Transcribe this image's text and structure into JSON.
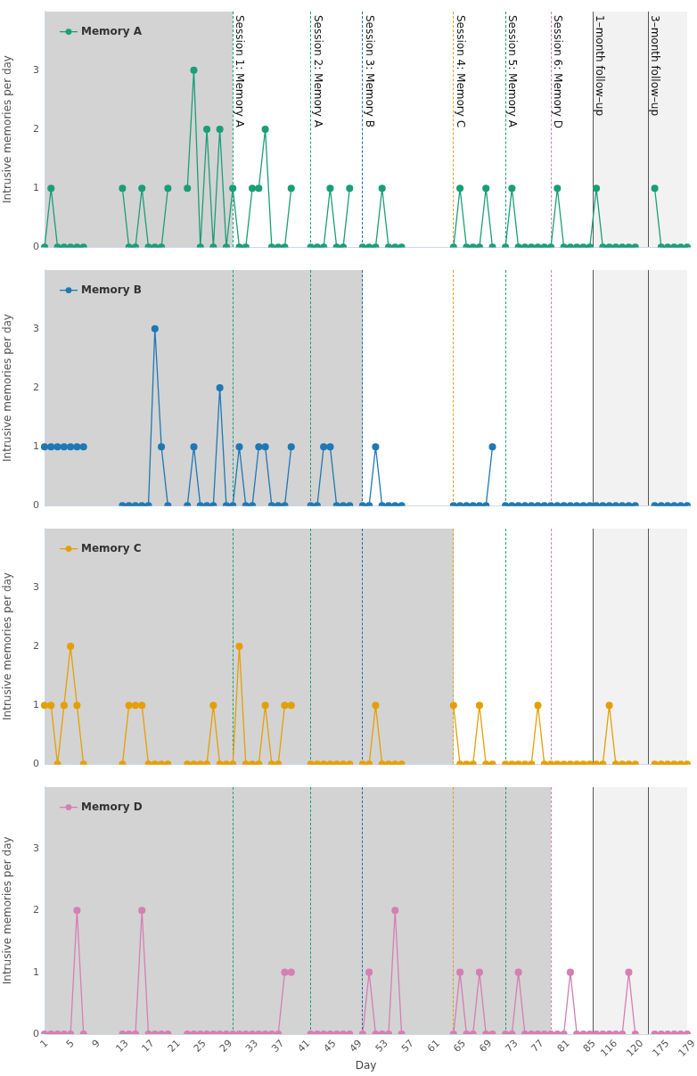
{
  "chart_data": [
    {
      "type": "line",
      "ylabel": "Intrusive memories per day",
      "legend": "top left",
      "marker": "circle",
      "line_style": "solid",
      "tick_labels": "y",
      "ylim": [
        0,
        4
      ],
      "yticks": [
        0,
        1,
        2,
        3
      ],
      "annotations": [
        "Session 1: Memory A",
        "Session 2: Memory A",
        "Session 3: Memory B",
        "Session 4: Memory C",
        "Session 5: Memory A",
        "Session 6: Memory D",
        "1–month follow–up",
        "3–month follow–up"
      ],
      "categories": [
        "1",
        null,
        null,
        null,
        "5",
        null,
        null,
        null,
        "9",
        null,
        null,
        null,
        "13",
        null,
        null,
        null,
        "17",
        null,
        null,
        null,
        "21",
        null,
        null,
        null,
        "25",
        null,
        null,
        null,
        "29",
        null,
        null,
        null,
        "33",
        null,
        null,
        null,
        "37",
        null,
        null,
        null,
        "41",
        null,
        null,
        null,
        "45",
        null,
        null,
        null,
        "49",
        null,
        null,
        null,
        "53",
        null,
        null,
        null,
        "57",
        null,
        null,
        null,
        "61",
        null,
        null,
        null,
        "65",
        null,
        null,
        null,
        "69",
        null,
        null,
        null,
        "73",
        null,
        null,
        null,
        "77",
        null,
        null,
        null,
        "81",
        null,
        null,
        null,
        "85",
        null,
        null,
        "116",
        null,
        null,
        null,
        "120",
        null,
        null,
        null,
        "175",
        null,
        null,
        null,
        "179"
      ],
      "series": [
        {
          "name": "Memory A",
          "color": "#1b9e77",
          "values": [
            0,
            1,
            0,
            0,
            0,
            0,
            0,
            null,
            null,
            null,
            null,
            null,
            1,
            0,
            0,
            1,
            0,
            0,
            0,
            1,
            null,
            null,
            1,
            3,
            0,
            2,
            0,
            2,
            0,
            1,
            0,
            0,
            1,
            1,
            2,
            0,
            0,
            0,
            1,
            null,
            null,
            0,
            0,
            0,
            1,
            0,
            0,
            1,
            null,
            0,
            0,
            0,
            1,
            0,
            0,
            0,
            null,
            null,
            null,
            null,
            null,
            null,
            null,
            0,
            1,
            0,
            0,
            0,
            1,
            0,
            null,
            0,
            1,
            0,
            0,
            0,
            0,
            0,
            0,
            1,
            0,
            0,
            0,
            0,
            0,
            1,
            0,
            0,
            0,
            0,
            0,
            0,
            null,
            null,
            1,
            0,
            0,
            0,
            0,
            0
          ]
        }
      ]
    },
    {
      "type": "line",
      "ylabel": "Intrusive memories per day",
      "legend": "top left",
      "marker": "circle",
      "line_style": "solid",
      "tick_labels": "y",
      "ylim": [
        0,
        4
      ],
      "yticks": [
        0,
        1,
        2,
        3
      ],
      "categories": [
        "1",
        null,
        null,
        null,
        "5",
        null,
        null,
        null,
        "9",
        null,
        null,
        null,
        "13",
        null,
        null,
        null,
        "17",
        null,
        null,
        null,
        "21",
        null,
        null,
        null,
        "25",
        null,
        null,
        null,
        "29",
        null,
        null,
        null,
        "33",
        null,
        null,
        null,
        "37",
        null,
        null,
        null,
        "41",
        null,
        null,
        null,
        "45",
        null,
        null,
        null,
        "49",
        null,
        null,
        null,
        "53",
        null,
        null,
        null,
        "57",
        null,
        null,
        null,
        "61",
        null,
        null,
        null,
        "65",
        null,
        null,
        null,
        "69",
        null,
        null,
        null,
        "73",
        null,
        null,
        null,
        "77",
        null,
        null,
        null,
        "81",
        null,
        null,
        null,
        "85",
        null,
        null,
        "116",
        null,
        null,
        null,
        "120",
        null,
        null,
        null,
        "175",
        null,
        null,
        null,
        "179"
      ],
      "series": [
        {
          "name": "Memory B",
          "color": "#1f78b4",
          "values": [
            1,
            1,
            1,
            1,
            1,
            1,
            1,
            null,
            null,
            null,
            null,
            null,
            0,
            0,
            0,
            0,
            0,
            3,
            1,
            0,
            null,
            null,
            0,
            1,
            0,
            0,
            0,
            2,
            0,
            0,
            1,
            0,
            0,
            1,
            1,
            0,
            0,
            0,
            1,
            null,
            null,
            0,
            0,
            1,
            1,
            0,
            0,
            0,
            null,
            0,
            0,
            1,
            0,
            0,
            0,
            0,
            null,
            null,
            null,
            null,
            null,
            null,
            null,
            0,
            0,
            0,
            0,
            0,
            0,
            1,
            null,
            0,
            0,
            0,
            0,
            0,
            0,
            0,
            0,
            0,
            0,
            0,
            0,
            0,
            0,
            0,
            0,
            0,
            0,
            0,
            0,
            0,
            null,
            null,
            0,
            0,
            0,
            0,
            0,
            0
          ]
        }
      ]
    },
    {
      "type": "line",
      "ylabel": "Intrusive memories per day",
      "legend": "top left",
      "marker": "circle",
      "line_style": "solid",
      "tick_labels": "y",
      "ylim": [
        0,
        4
      ],
      "yticks": [
        0,
        1,
        2,
        3
      ],
      "categories": [
        "1",
        null,
        null,
        null,
        "5",
        null,
        null,
        null,
        "9",
        null,
        null,
        null,
        "13",
        null,
        null,
        null,
        "17",
        null,
        null,
        null,
        "21",
        null,
        null,
        null,
        "25",
        null,
        null,
        null,
        "29",
        null,
        null,
        null,
        "33",
        null,
        null,
        null,
        "37",
        null,
        null,
        null,
        "41",
        null,
        null,
        null,
        "45",
        null,
        null,
        null,
        "49",
        null,
        null,
        null,
        "53",
        null,
        null,
        null,
        "57",
        null,
        null,
        null,
        "61",
        null,
        null,
        null,
        "65",
        null,
        null,
        null,
        "69",
        null,
        null,
        null,
        "73",
        null,
        null,
        null,
        "77",
        null,
        null,
        null,
        "81",
        null,
        null,
        null,
        "85",
        null,
        null,
        "116",
        null,
        null,
        null,
        "120",
        null,
        null,
        null,
        "175",
        null,
        null,
        null,
        "179"
      ],
      "series": [
        {
          "name": "Memory C",
          "color": "#e69f00",
          "values": [
            1,
            1,
            0,
            1,
            2,
            1,
            0,
            null,
            null,
            null,
            null,
            null,
            0,
            1,
            1,
            1,
            0,
            0,
            0,
            0,
            null,
            null,
            0,
            0,
            0,
            0,
            1,
            0,
            0,
            0,
            2,
            0,
            0,
            0,
            1,
            0,
            0,
            1,
            1,
            null,
            null,
            0,
            0,
            0,
            0,
            0,
            0,
            0,
            null,
            0,
            0,
            1,
            0,
            0,
            0,
            0,
            null,
            null,
            null,
            null,
            null,
            null,
            null,
            1,
            0,
            0,
            0,
            1,
            0,
            0,
            null,
            0,
            0,
            0,
            0,
            0,
            1,
            0,
            0,
            0,
            0,
            0,
            0,
            0,
            0,
            0,
            0,
            1,
            0,
            0,
            0,
            0,
            null,
            null,
            0,
            0,
            0,
            0,
            0,
            0
          ]
        }
      ]
    },
    {
      "type": "line",
      "xlabel": "Day",
      "ylabel": "Intrusive memories per day",
      "legend": "top left",
      "marker": "circle",
      "line_style": "solid",
      "ylim": [
        0,
        4
      ],
      "yticks": [
        0,
        1,
        2,
        3
      ],
      "categories": [
        "1",
        null,
        null,
        null,
        "5",
        null,
        null,
        null,
        "9",
        null,
        null,
        null,
        "13",
        null,
        null,
        null,
        "17",
        null,
        null,
        null,
        "21",
        null,
        null,
        null,
        "25",
        null,
        null,
        null,
        "29",
        null,
        null,
        null,
        "33",
        null,
        null,
        null,
        "37",
        null,
        null,
        null,
        "41",
        null,
        null,
        null,
        "45",
        null,
        null,
        null,
        "49",
        null,
        null,
        null,
        "53",
        null,
        null,
        null,
        "57",
        null,
        null,
        null,
        "61",
        null,
        null,
        null,
        "65",
        null,
        null,
        null,
        "69",
        null,
        null,
        null,
        "73",
        null,
        null,
        null,
        "77",
        null,
        null,
        null,
        "81",
        null,
        null,
        null,
        "85",
        null,
        null,
        "116",
        null,
        null,
        null,
        "120",
        null,
        null,
        null,
        "175",
        null,
        null,
        null,
        "179"
      ],
      "series": [
        {
          "name": "Memory D",
          "color": "#d57fb2",
          "values": [
            0,
            0,
            0,
            0,
            0,
            2,
            0,
            null,
            null,
            null,
            null,
            null,
            0,
            0,
            0,
            2,
            0,
            0,
            0,
            0,
            null,
            null,
            0,
            0,
            0,
            0,
            0,
            0,
            0,
            0,
            0,
            0,
            0,
            0,
            0,
            0,
            0,
            1,
            1,
            null,
            null,
            0,
            0,
            0,
            0,
            0,
            0,
            0,
            null,
            0,
            1,
            0,
            0,
            0,
            2,
            0,
            null,
            null,
            null,
            null,
            null,
            null,
            null,
            0,
            1,
            0,
            0,
            1,
            0,
            0,
            null,
            0,
            0,
            1,
            0,
            0,
            0,
            0,
            0,
            0,
            0,
            1,
            0,
            0,
            0,
            0,
            0,
            0,
            0,
            0,
            1,
            0,
            null,
            null,
            0,
            0,
            0,
            0,
            0,
            0
          ]
        }
      ]
    }
  ]
}
